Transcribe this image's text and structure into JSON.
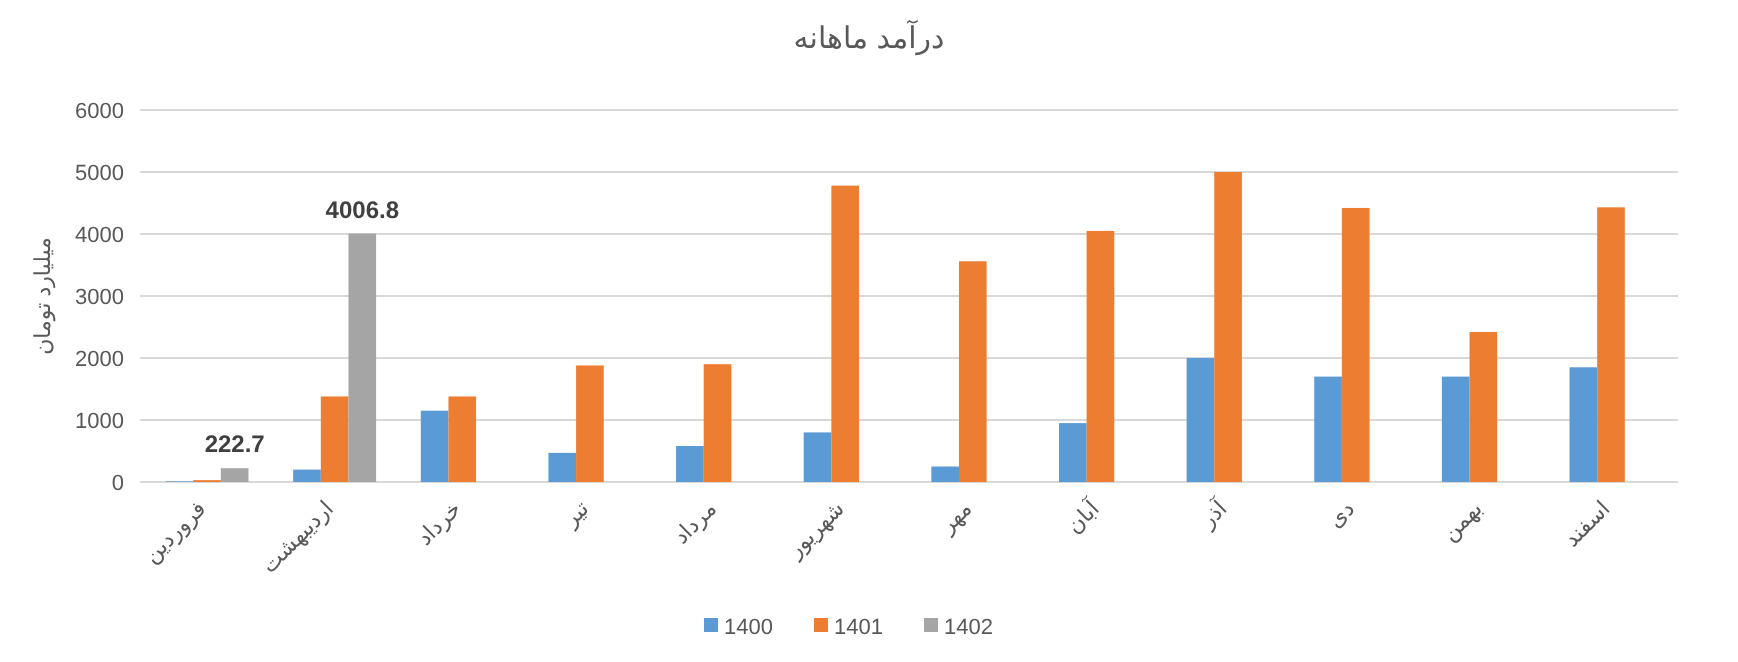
{
  "chart_data": {
    "type": "bar",
    "title": "درآمد ماهانه",
    "ylabel": "میلیارد تومان",
    "categories": [
      "فروردین",
      "اردیبهشت",
      "خرداد",
      "تیر",
      "مرداد",
      "شهریور",
      "مهر",
      "آبان",
      "آذر",
      "دی",
      "بهمن",
      "اسفند"
    ],
    "series": [
      {
        "name": "1400",
        "color": "#5b9bd5",
        "values": [
          10,
          200,
          1150,
          470,
          580,
          800,
          250,
          950,
          2000,
          1700,
          1700,
          1850
        ]
      },
      {
        "name": "1401",
        "color": "#ed7d31",
        "values": [
          30,
          1380,
          1380,
          1880,
          1900,
          4780,
          3560,
          4050,
          5000,
          4420,
          2420,
          4430
        ]
      },
      {
        "name": "1402",
        "color": "#a5a5a5",
        "values": [
          222.7,
          4006.8,
          null,
          null,
          null,
          null,
          null,
          null,
          null,
          null,
          null,
          null
        ],
        "value_labels": [
          "222.7",
          "4006.8",
          null,
          null,
          null,
          null,
          null,
          null,
          null,
          null,
          null,
          null
        ]
      }
    ],
    "ylim": [
      0,
      6000
    ],
    "yticks": [
      0,
      1000,
      2000,
      3000,
      4000,
      5000,
      6000
    ],
    "grid": "y",
    "legend": "bottom"
  }
}
